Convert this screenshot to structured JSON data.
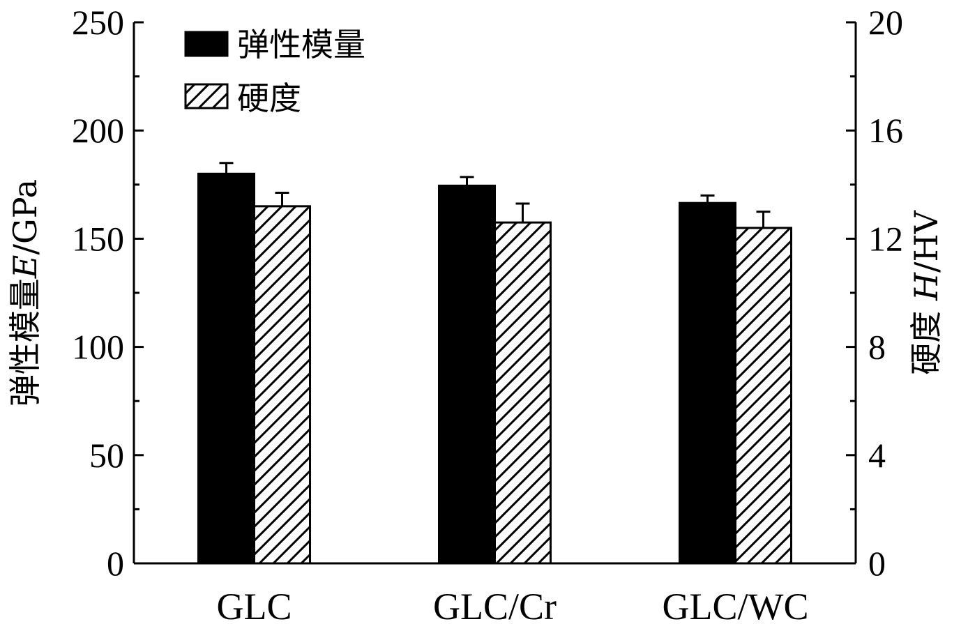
{
  "chart_data": {
    "type": "bar",
    "categories": [
      "GLC",
      "GLC/Cr",
      "GLC/WC"
    ],
    "series": [
      {
        "name": "弹性模量",
        "axis": "left",
        "fill": "solid",
        "color": "#000000",
        "values": [
          180,
          174.5,
          166.5
        ],
        "error": [
          5,
          4,
          3.5
        ]
      },
      {
        "name": "硬度",
        "axis": "right",
        "fill": "hatch",
        "color": "#000000",
        "values": [
          13.2,
          12.6,
          12.4
        ],
        "error": [
          0.5,
          0.7,
          0.6
        ]
      }
    ],
    "yaxis_left": {
      "label_prefix": "弹性模量",
      "label_var": "E",
      "label_unit": "/GPa",
      "ylim": [
        0,
        250
      ],
      "ticks": [
        "0",
        "50",
        "100",
        "150",
        "200",
        "250"
      ]
    },
    "yaxis_right": {
      "label_prefix": "硬度 ",
      "label_var": "H",
      "label_unit": "/HV",
      "ylim": [
        0,
        20
      ],
      "ticks": [
        "0",
        "4",
        "8",
        "12",
        "16",
        "20"
      ]
    },
    "legend_position": "top-left",
    "grid": false
  }
}
